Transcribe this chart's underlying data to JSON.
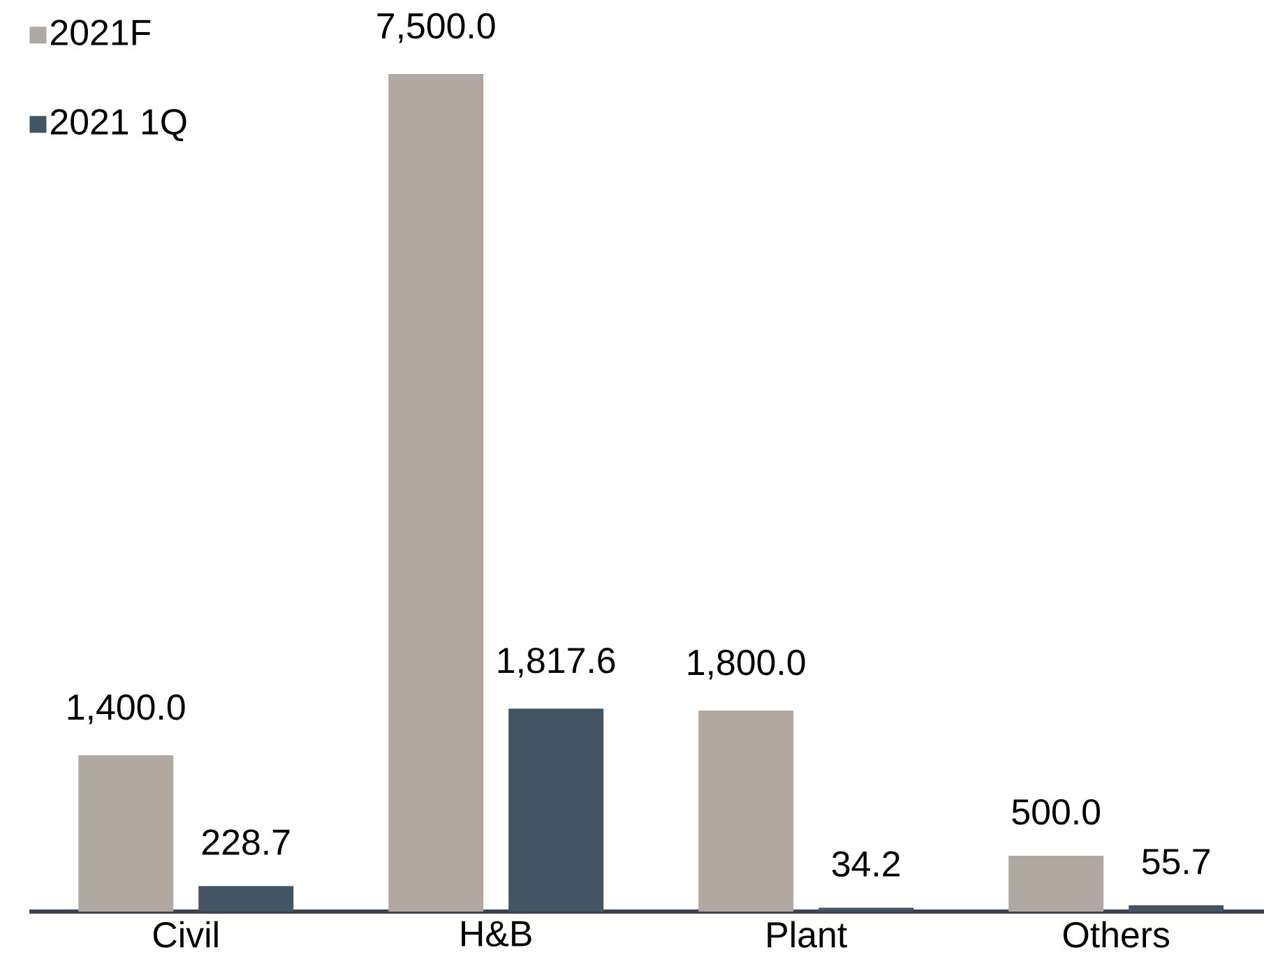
{
  "chart_data": {
    "type": "bar",
    "categories": [
      "Civil",
      "H&B",
      "Plant",
      "Others"
    ],
    "series": [
      {
        "name": "2021F",
        "color": "#b0a8a1",
        "values": [
          1400.0,
          7500.0,
          1800.0,
          500.0
        ],
        "value_labels": [
          "1,400.0",
          "7,500.0",
          "1,800.0",
          "500.0"
        ]
      },
      {
        "name": "2021 1Q",
        "color": "#435562",
        "values": [
          228.7,
          1817.6,
          34.2,
          55.7
        ],
        "value_labels": [
          "228.7",
          "1,817.6",
          "34.2",
          "55.7"
        ]
      }
    ],
    "tick_labels": "x",
    "legend": "top left"
  }
}
